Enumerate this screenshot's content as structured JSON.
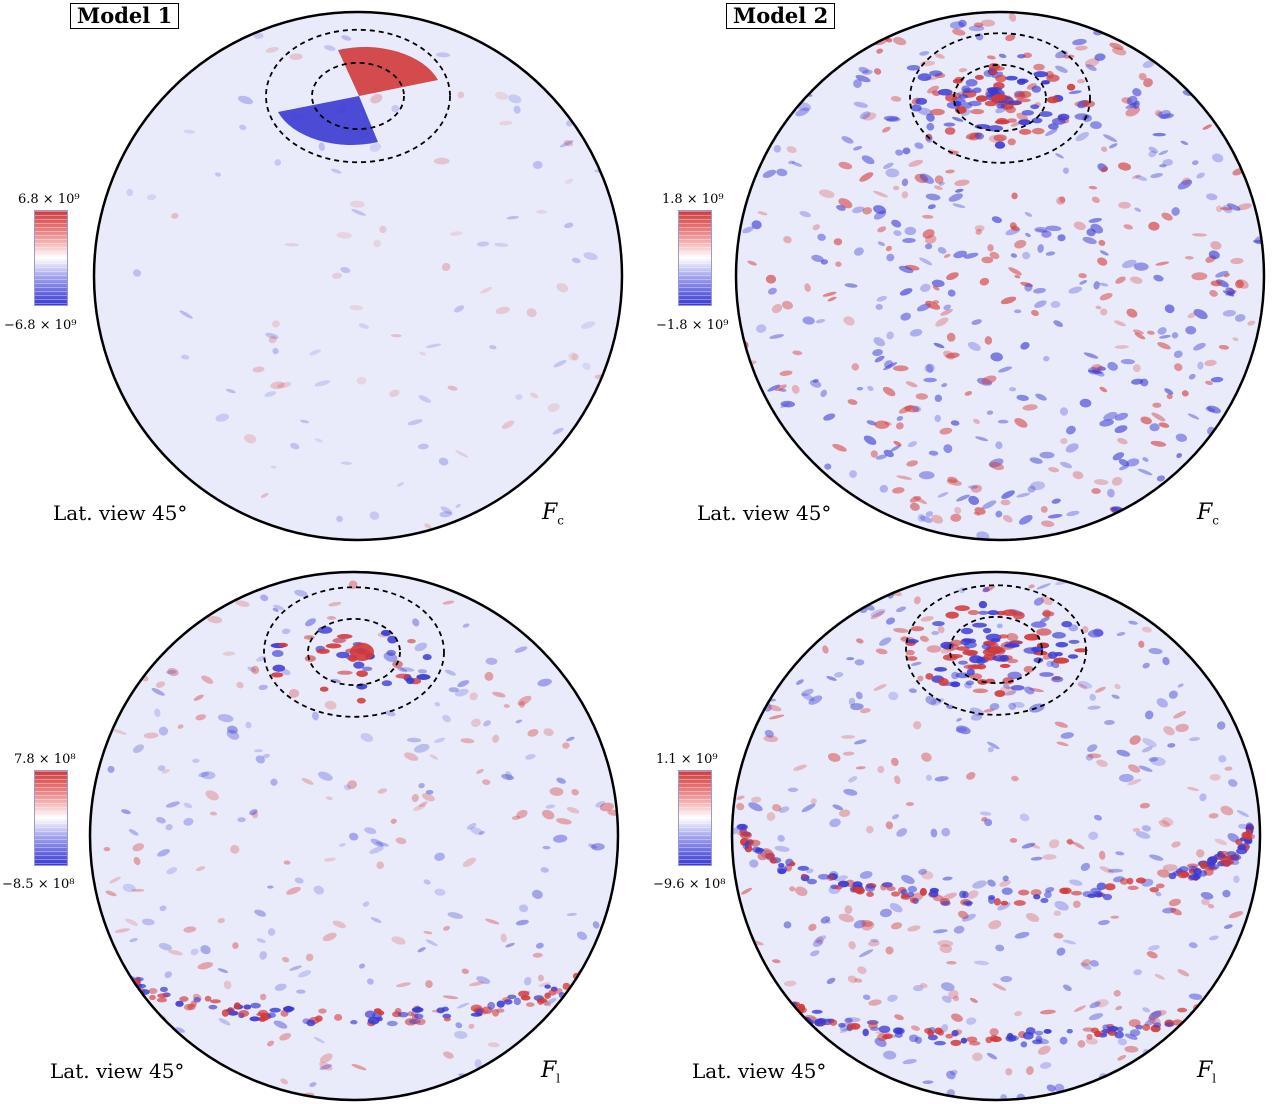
{
  "colors": {
    "positive": "#d23a3a",
    "negative": "#3a3ad2",
    "neutral": "#ffffff",
    "background_tint": "#e9ebfa"
  },
  "panels": [
    {
      "model_label": "Model 1",
      "view_label": "Lat. view 45°",
      "field_symbol": "F",
      "field_subscript": "c",
      "colorbar_max": "6.8 × 10⁹",
      "colorbar_min": "−6.8 × 10⁹",
      "icon": "sphere-map-icon"
    },
    {
      "model_label": "Model 2",
      "view_label": "Lat. view 45°",
      "field_symbol": "F",
      "field_subscript": "c",
      "colorbar_max": "1.8 × 10⁹",
      "colorbar_min": "−1.8 × 10⁹",
      "icon": "sphere-map-icon"
    },
    {
      "model_label": "",
      "view_label": "Lat. view 45°",
      "field_symbol": "F",
      "field_subscript": "l",
      "colorbar_max": "7.8 × 10⁸",
      "colorbar_min": "−8.5 × 10⁸",
      "icon": "sphere-map-icon"
    },
    {
      "model_label": "",
      "view_label": "Lat. view 45°",
      "field_symbol": "F",
      "field_subscript": "l",
      "colorbar_max": "1.1 × 10⁹",
      "colorbar_min": "−9.6 × 10⁸",
      "icon": "sphere-map-icon"
    }
  ]
}
